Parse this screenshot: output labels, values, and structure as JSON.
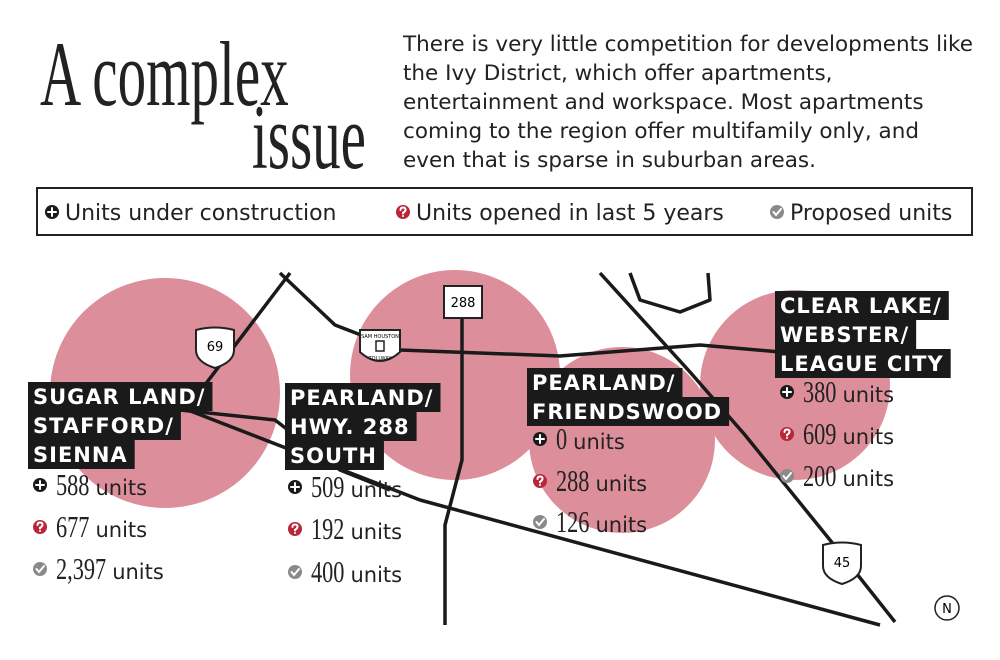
{
  "header": {
    "title_line1": "A complex",
    "title_line2": "issue",
    "intro": "There is very little competition for developments like the Ivy District, which offer apartments, entertainment and workspace. Most apartments coming to the region offer multifamily only, and even that is sparse in suburban areas."
  },
  "legend": [
    "Units under construction",
    "Units opened in last 5 years",
    "Proposed units"
  ],
  "regions": [
    {
      "name_lines": [
        "SUGAR LAND/",
        "STAFFORD/",
        "SIENNA"
      ],
      "stats": [
        {
          "value": 588,
          "unit": "units"
        },
        {
          "value": 677,
          "unit": "units"
        },
        {
          "value": {
            "value": 2397,
            "label": "2,397"
          },
          "unit": "units"
        }
      ]
    },
    {
      "name_lines": [
        "PEARLAND/",
        "HWY. 288",
        "SOUTH"
      ],
      "stats": [
        {
          "value": 509,
          "unit": "units"
        },
        {
          "value": 192,
          "unit": "units"
        },
        {
          "value": 400,
          "unit": "units"
        }
      ]
    },
    {
      "name_lines": [
        "PEARLAND/",
        "FRIENDSWOOD"
      ],
      "stats": [
        {
          "value": 0,
          "unit": "units"
        },
        {
          "value": 288,
          "unit": "units"
        },
        {
          "value": 126,
          "unit": "units"
        }
      ]
    },
    {
      "name_lines": [
        "CLEAR LAKE/",
        "WEBSTER/",
        "LEAGUE CITY"
      ],
      "stats": [
        {
          "value": 380,
          "unit": "units"
        },
        {
          "value": 609,
          "unit": "units"
        },
        {
          "value": 200,
          "unit": "units"
        }
      ]
    }
  ],
  "map": {
    "shields": {
      "i69": "69",
      "sh288": "288",
      "i45": "45",
      "tollway_top": "SAM HOUSTON",
      "tollway_bottom": "TOLLWAY"
    },
    "north": "N"
  }
}
